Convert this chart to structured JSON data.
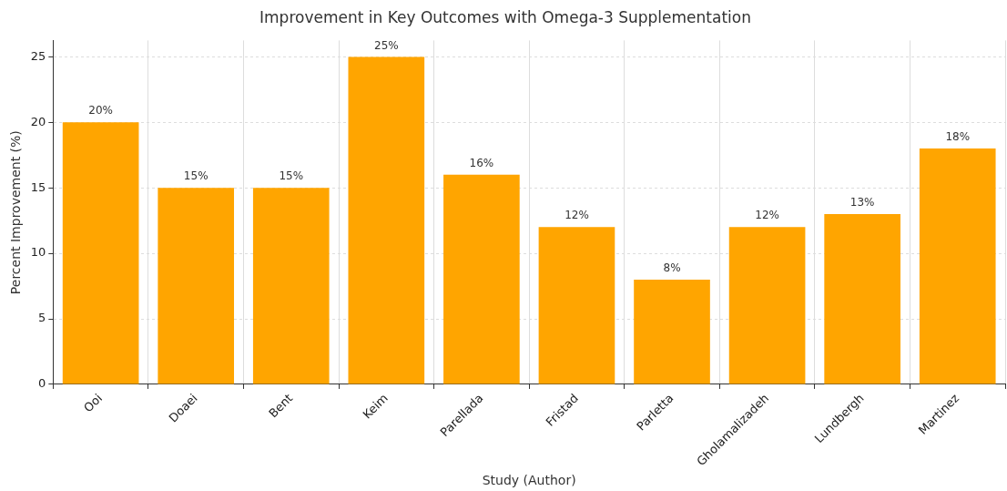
{
  "chart_data": {
    "type": "bar",
    "title": "Improvement in Key Outcomes with Omega-3 Supplementation",
    "xlabel": "Study (Author)",
    "ylabel": "Percent Improvement (%)",
    "categories": [
      "Ooi",
      "Doaei",
      "Bent",
      "Keim",
      "Parellada",
      "Fristad",
      "Parletta",
      "Gholamalizadeh",
      "Lundbergh",
      "Martinez"
    ],
    "values": [
      20,
      15,
      15,
      25,
      16,
      12,
      8,
      12,
      13,
      18
    ],
    "value_labels": [
      "20%",
      "15%",
      "15%",
      "25%",
      "16%",
      "12%",
      "8%",
      "12%",
      "13%",
      "18%"
    ],
    "color": "#ffa500",
    "ylim": [
      0,
      26.25
    ],
    "yticks": [
      0,
      5,
      10,
      15,
      20,
      25
    ],
    "grid": true,
    "legend": false
  }
}
